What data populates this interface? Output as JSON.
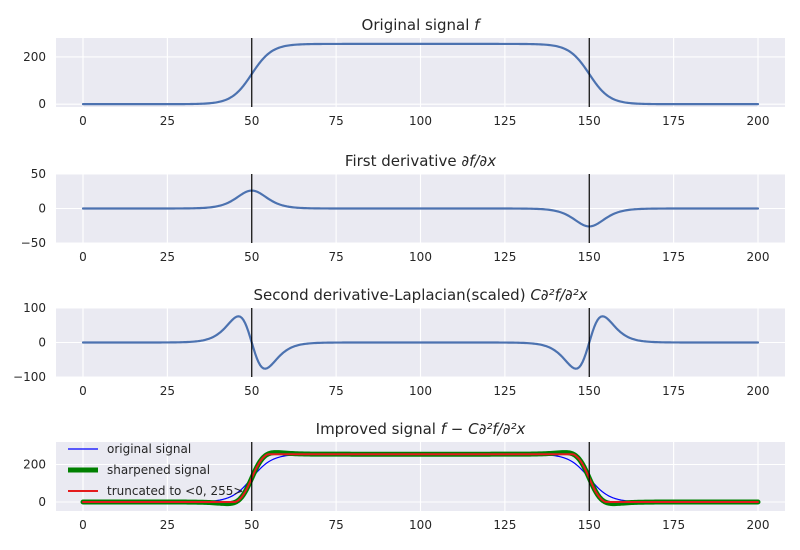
{
  "figure": {
    "background": "#ffffff",
    "axes_background": "#eaeaf2",
    "grid_color": "#ffffff"
  },
  "chart_data": [
    {
      "type": "line",
      "title": "Original signal f",
      "title_math": {
        "prefix": "Original signal ",
        "italic": "f"
      },
      "xlim": [
        -8,
        208
      ],
      "ylim": [
        -12,
        280
      ],
      "xticks": [
        0,
        25,
        50,
        75,
        100,
        125,
        150,
        175,
        200
      ],
      "yticks": [
        0,
        200
      ],
      "grid": true,
      "vlines": [
        50,
        150
      ],
      "series": [
        {
          "kind": "sigmoid_plateau",
          "color": "#4c72b0",
          "lw": 2.2,
          "x_range": [
            0,
            200
          ],
          "level": 255,
          "edges": [
            50,
            150
          ],
          "width": 3
        }
      ]
    },
    {
      "type": "line",
      "title": "First derivative ∂f/∂x",
      "title_math": {
        "prefix": "First derivative ",
        "italic": "∂f/∂x"
      },
      "xlim": [
        -8,
        208
      ],
      "ylim": [
        -50,
        50
      ],
      "xticks": [
        0,
        25,
        50,
        75,
        100,
        125,
        150,
        175,
        200
      ],
      "yticks": [
        -50,
        0,
        50
      ],
      "grid": true,
      "vlines": [
        50,
        150
      ],
      "series": [
        {
          "kind": "first_derivative",
          "color": "#4c72b0",
          "lw": 2.2,
          "x_range": [
            0,
            200
          ],
          "level": 255,
          "edges": [
            50,
            150
          ],
          "width": 3,
          "peak": 26
        }
      ]
    },
    {
      "type": "line",
      "title": "Second derivative-Laplacian(scaled) C∂²f/∂²x",
      "title_math": {
        "prefix": "Second derivative-Laplacian(scaled) ",
        "italic": "C∂²f/∂²x"
      },
      "xlim": [
        -8,
        208
      ],
      "ylim": [
        -100,
        100
      ],
      "xticks": [
        0,
        25,
        50,
        75,
        100,
        125,
        150,
        175,
        200
      ],
      "yticks": [
        -100,
        0,
        100
      ],
      "grid": true,
      "vlines": [
        50,
        150
      ],
      "series": [
        {
          "kind": "second_derivative",
          "color": "#4c72b0",
          "lw": 2.2,
          "x_range": [
            0,
            200
          ],
          "level": 255,
          "edges": [
            50,
            150
          ],
          "width": 3,
          "peak": 76
        }
      ]
    },
    {
      "type": "line",
      "title": "Improved signal f − C∂²f/∂²x",
      "title_math": {
        "prefix": "Improved signal ",
        "italic": "f − C∂²f/∂²x"
      },
      "xlim": [
        -8,
        208
      ],
      "ylim": [
        -48,
        320
      ],
      "xticks": [
        0,
        25,
        50,
        75,
        100,
        125,
        150,
        175,
        200
      ],
      "yticks": [
        0,
        200
      ],
      "grid": true,
      "vlines": [
        50,
        150
      ],
      "legend": {
        "placement": "upper-left",
        "entries": [
          "original signal",
          "sharpened signal",
          "truncated to <0, 255>"
        ]
      },
      "series": [
        {
          "name": "original signal",
          "kind": "sigmoid_plateau",
          "color": "#0000ff",
          "lw": 1.2,
          "x_range": [
            0,
            200
          ],
          "level": 255,
          "edges": [
            50,
            150
          ],
          "width": 3
        },
        {
          "name": "sharpened signal",
          "kind": "sharpened",
          "color": "#008000",
          "lw": 5,
          "x_range": [
            0,
            200
          ],
          "level": 255,
          "edges": [
            50,
            150
          ],
          "width": 3,
          "peak": 45
        },
        {
          "name": "truncated to <0, 255>",
          "kind": "sharpened_clipped",
          "color": "#e41a1c",
          "lw": 2,
          "x_range": [
            0,
            200
          ],
          "level": 255,
          "edges": [
            50,
            150
          ],
          "width": 3,
          "peak": 45,
          "clip": [
            0,
            255
          ]
        }
      ]
    }
  ]
}
